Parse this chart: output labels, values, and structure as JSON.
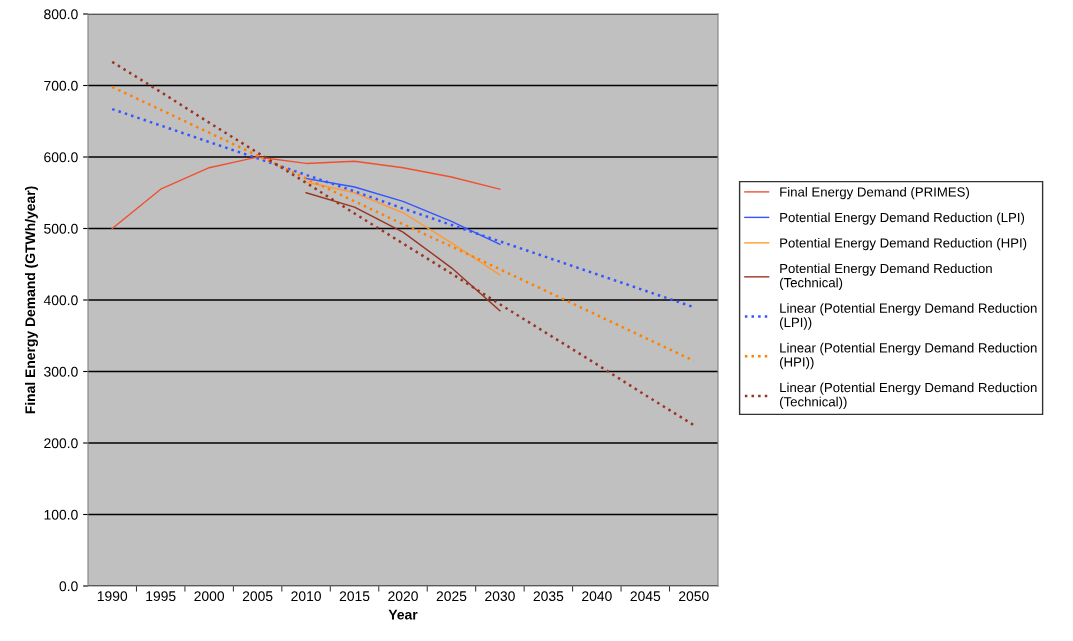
{
  "chart_data": {
    "type": "line",
    "xlabel": "Year",
    "ylabel": "Final Energy Demand (GTWh/year)",
    "categories": [
      "1990",
      "1995",
      "2000",
      "2005",
      "2010",
      "2015",
      "2020",
      "2025",
      "2030",
      "2035",
      "2040",
      "2045",
      "2050"
    ],
    "series": [
      {
        "name": "Final Energy Demand (PRIMES)",
        "color": "#f05030",
        "line_style": "solid",
        "values": [
          500,
          555,
          585,
          600,
          591,
          594,
          585,
          572,
          555,
          null,
          null,
          null,
          null
        ]
      },
      {
        "name": "Potential Energy Demand Reduction (LPI)",
        "color": "#3355ff",
        "line_style": "solid",
        "values": [
          null,
          null,
          null,
          null,
          570,
          558,
          538,
          510,
          478,
          null,
          null,
          null,
          null
        ]
      },
      {
        "name": "Potential Energy Demand Reduction (HPI)",
        "color": "#ff9933",
        "line_style": "solid",
        "values": [
          null,
          null,
          null,
          null,
          565,
          550,
          522,
          480,
          435,
          null,
          null,
          null,
          null
        ]
      },
      {
        "name": "Potential Energy Demand Reduction (Technical)",
        "color": "#993322",
        "line_style": "solid",
        "values": [
          null,
          null,
          null,
          null,
          550,
          530,
          495,
          445,
          385,
          null,
          null,
          null,
          null
        ]
      },
      {
        "name": "Linear (Potential Energy Demand Reduction (LPI))",
        "color": "#3355ff",
        "line_style": "dotted",
        "values": [
          667,
          644,
          621,
          598,
          575,
          552,
          528,
          505,
          482,
          459,
          436,
          413,
          390
        ]
      },
      {
        "name": "Linear (Potential Energy Demand Reduction (HPI))",
        "color": "#ff8000",
        "line_style": "dotted",
        "values": [
          698,
          666,
          634,
          602,
          570,
          538,
          506,
          475,
          443,
          411,
          379,
          347,
          315
        ]
      },
      {
        "name": "Linear (Potential Energy Demand Reduction (Technical))",
        "color": "#993322",
        "line_style": "dotted",
        "values": [
          733,
          691,
          648,
          606,
          564,
          521,
          479,
          437,
          394,
          352,
          310,
          267,
          225
        ]
      }
    ],
    "ylim": [
      0,
      800
    ],
    "yticks": [
      {
        "value": 0,
        "label": "0.0"
      },
      {
        "value": 100,
        "label": "100.0"
      },
      {
        "value": 200,
        "label": "200.0"
      },
      {
        "value": 300,
        "label": "300.0"
      },
      {
        "value": 400,
        "label": "400.0"
      },
      {
        "value": 500,
        "label": "500.0"
      },
      {
        "value": 600,
        "label": "600.0"
      },
      {
        "value": 700,
        "label": "700.0"
      },
      {
        "value": 800,
        "label": "800.0"
      }
    ],
    "grid": "y",
    "legend": "right",
    "marker": "none"
  }
}
